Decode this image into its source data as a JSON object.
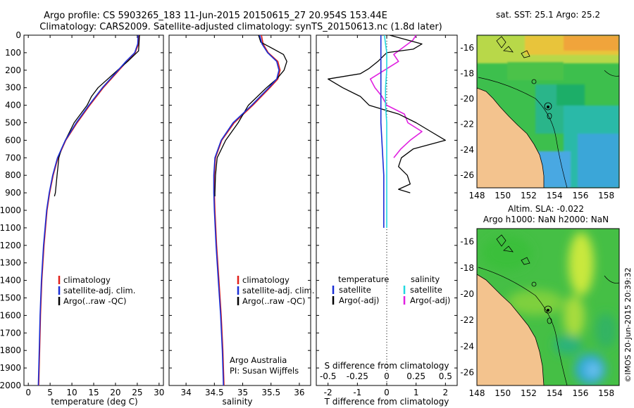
{
  "header": {
    "line1": "Argo profile: CS 5903265_183 11-Jun-2015 20150615_27 20.954S 153.44E",
    "line2": "Climatology: CARS2009. Satellite-adjusted climatology: synTS_20150613.nc (1.8d later)"
  },
  "colors": {
    "climatology": "#e0201a",
    "satellite": "#1a2fd6",
    "argo": "#000000",
    "sal_satellite": "#22d8e0",
    "sal_argo": "#e020e0",
    "land": "#f3c38e"
  },
  "temp_panel": {
    "xlabel": "temperature (deg C)",
    "legend": [
      "climatology",
      "satellite-adj. clim.",
      "Argo(..raw -QC)"
    ]
  },
  "sal_panel": {
    "xlabel": "salinity",
    "legend": [
      "climatology",
      "satellite-adj. clim.",
      "Argo(..raw -QC)"
    ],
    "credit1": "Argo Australia",
    "credit2": "PI: Susan Wijffels"
  },
  "diff_panel": {
    "legend_head_t": "temperature",
    "legend_head_s": "salinity",
    "legend_t": [
      "satellite",
      "Argo(-adj)"
    ],
    "legend_s": [
      "satellite",
      "Argo(-adj)"
    ],
    "s_axis_label": "S difference from climatology",
    "t_axis_label": "T difference from climatology"
  },
  "sst_map": {
    "title": "sat. SST: 25.1  Argo: 25.2"
  },
  "sla_map": {
    "title1": "Altim. SLA: -0.022",
    "title2": "Argo h1000: NaN h2000: NaN"
  },
  "stamp": "©IMOS 20-Jun-2015 20:39:32",
  "chart_data": [
    {
      "type": "line",
      "id": "temperature-profile",
      "xlabel": "temperature (deg C)",
      "ylabel": "",
      "xlim": [
        -1,
        31
      ],
      "ylim": [
        2000,
        0
      ],
      "xticks": [
        0,
        5,
        10,
        15,
        20,
        25,
        30
      ],
      "yticks": [
        0,
        100,
        200,
        300,
        400,
        500,
        600,
        700,
        800,
        900,
        1000,
        1100,
        1200,
        1300,
        1400,
        1500,
        1600,
        1700,
        1800,
        1900,
        2000
      ],
      "series": [
        {
          "name": "climatology",
          "depth": [
            0,
            50,
            100,
            150,
            200,
            300,
            400,
            500,
            600,
            700,
            800,
            900,
            1000,
            1200,
            1400,
            1600,
            1800,
            2000
          ],
          "values": [
            25.4,
            25.3,
            24.5,
            22.6,
            20.8,
            17.2,
            14.1,
            11.2,
            8.6,
            6.8,
            5.7,
            4.9,
            4.3,
            3.6,
            3.1,
            2.8,
            2.6,
            2.4
          ]
        },
        {
          "name": "satellite-adj. clim.",
          "depth": [
            0,
            50,
            100,
            150,
            200,
            300,
            400,
            500,
            600,
            700,
            800,
            900,
            1000,
            1200,
            1400,
            1600,
            1800,
            2000
          ],
          "values": [
            25.2,
            25.1,
            24.4,
            22.4,
            20.6,
            17.0,
            13.9,
            11.0,
            8.5,
            6.7,
            5.6,
            4.8,
            4.2,
            3.5,
            3.0,
            2.7,
            2.5,
            2.3
          ]
        },
        {
          "name": "Argo(..raw -QC)",
          "depth": [
            0,
            50,
            90,
            150,
            200,
            300,
            350,
            400,
            450,
            500,
            550,
            600,
            650,
            700,
            750,
            800,
            850,
            900,
            920
          ],
          "values": [
            25.5,
            25.4,
            25.3,
            22.8,
            20.5,
            16.0,
            14.5,
            13.5,
            12.0,
            10.5,
            9.5,
            8.5,
            7.6,
            7.0,
            6.8,
            6.6,
            6.4,
            6.2,
            6.0
          ]
        }
      ]
    },
    {
      "type": "line",
      "id": "salinity-profile",
      "xlabel": "salinity",
      "ylabel": "",
      "xlim": [
        33.7,
        36.2
      ],
      "ylim": [
        2000,
        0
      ],
      "xticks": [
        34,
        34.5,
        35,
        35.5,
        36
      ],
      "series": [
        {
          "name": "climatology",
          "depth": [
            0,
            50,
            100,
            150,
            200,
            250,
            300,
            400,
            500,
            600,
            700,
            800,
            900,
            1000,
            1200,
            1400,
            1600,
            1800,
            2000
          ],
          "values": [
            35.33,
            35.36,
            35.45,
            35.62,
            35.66,
            35.62,
            35.48,
            35.18,
            34.85,
            34.63,
            34.52,
            34.5,
            34.5,
            34.51,
            34.54,
            34.58,
            34.62,
            34.65,
            34.67
          ]
        },
        {
          "name": "satellite-adj. clim.",
          "depth": [
            0,
            50,
            100,
            150,
            200,
            250,
            300,
            400,
            500,
            600,
            700,
            800,
            900,
            1000,
            1200,
            1400,
            1600,
            1800,
            2000
          ],
          "values": [
            35.3,
            35.34,
            35.44,
            35.6,
            35.64,
            35.6,
            35.46,
            35.16,
            34.83,
            34.62,
            34.51,
            34.49,
            34.49,
            34.5,
            34.53,
            34.57,
            34.61,
            34.64,
            34.66
          ]
        },
        {
          "name": "Argo(..raw -QC)",
          "depth": [
            0,
            40,
            80,
            110,
            150,
            200,
            250,
            300,
            400,
            500,
            600,
            700,
            800,
            900,
            920
          ],
          "values": [
            35.28,
            35.32,
            35.55,
            35.72,
            35.78,
            35.73,
            35.6,
            35.42,
            35.1,
            34.92,
            34.7,
            34.55,
            34.52,
            34.51,
            34.51
          ]
        }
      ]
    },
    {
      "type": "line",
      "id": "difference-profile",
      "xlabel": "T difference from climatology",
      "x2label": "S difference from climatology",
      "ylabel": "",
      "xlim": [
        -2.4,
        2.4
      ],
      "x2lim": [
        -0.6,
        0.6
      ],
      "ylim": [
        2000,
        0
      ],
      "xticks": [
        -2,
        -1,
        0,
        1,
        2
      ],
      "x2ticks": [
        -0.5,
        -0.25,
        0,
        0.25,
        0.5
      ],
      "series": [
        {
          "name": "temperature satellite",
          "axis": "T",
          "depth": [
            0,
            200,
            500,
            800,
            1100
          ],
          "values": [
            -0.2,
            -0.2,
            -0.2,
            -0.1,
            -0.1
          ]
        },
        {
          "name": "temperature Argo(-adj)",
          "axis": "T",
          "depth": [
            0,
            50,
            80,
            100,
            150,
            190,
            220,
            250,
            300,
            350,
            400,
            430,
            450,
            500,
            550,
            600,
            650,
            700,
            750,
            800,
            850,
            880,
            900
          ],
          "values": [
            0.1,
            1.2,
            0.9,
            0.0,
            -0.3,
            -0.6,
            -0.9,
            -2.0,
            -1.5,
            -0.9,
            -0.6,
            0.0,
            0.4,
            1.0,
            1.5,
            2.0,
            0.9,
            0.5,
            0.4,
            0.7,
            0.8,
            0.4,
            0.8
          ]
        },
        {
          "name": "salinity satellite",
          "axis": "S",
          "depth": [
            0,
            50,
            100,
            200,
            300,
            400,
            500,
            700,
            900,
            1100
          ],
          "values": [
            -0.02,
            -0.01,
            0.0,
            0.0,
            -0.01,
            -0.01,
            0.0,
            0.0,
            0.0,
            0.0
          ]
        },
        {
          "name": "salinity Argo(-adj)",
          "axis": "S",
          "depth": [
            0,
            30,
            80,
            110,
            150,
            200,
            250,
            300,
            350,
            400,
            450,
            500,
            550,
            600,
            650,
            700
          ],
          "values": [
            0.25,
            0.22,
            0.12,
            0.06,
            0.1,
            -0.02,
            -0.14,
            -0.1,
            -0.04,
            0.0,
            0.15,
            0.18,
            0.3,
            0.2,
            0.12,
            0.06
          ]
        }
      ]
    },
    {
      "type": "heatmap",
      "id": "sst-map",
      "title": "sat. SST: 25.1  Argo: 25.2",
      "xlim": [
        148,
        159
      ],
      "ylim": [
        -27,
        -15
      ],
      "xticks": [
        148,
        150,
        152,
        154,
        156,
        158
      ],
      "yticks": [
        -16,
        -18,
        -20,
        -22,
        -24,
        -26
      ]
    },
    {
      "type": "heatmap",
      "id": "sla-map",
      "title": "Altim. SLA: -0.022",
      "subtitle": "Argo h1000: NaN h2000: NaN",
      "xlim": [
        148,
        159
      ],
      "ylim": [
        -27,
        -15
      ],
      "xticks": [
        148,
        150,
        152,
        154,
        156,
        158
      ],
      "yticks": [
        -16,
        -18,
        -20,
        -22,
        -24,
        -26
      ]
    }
  ]
}
